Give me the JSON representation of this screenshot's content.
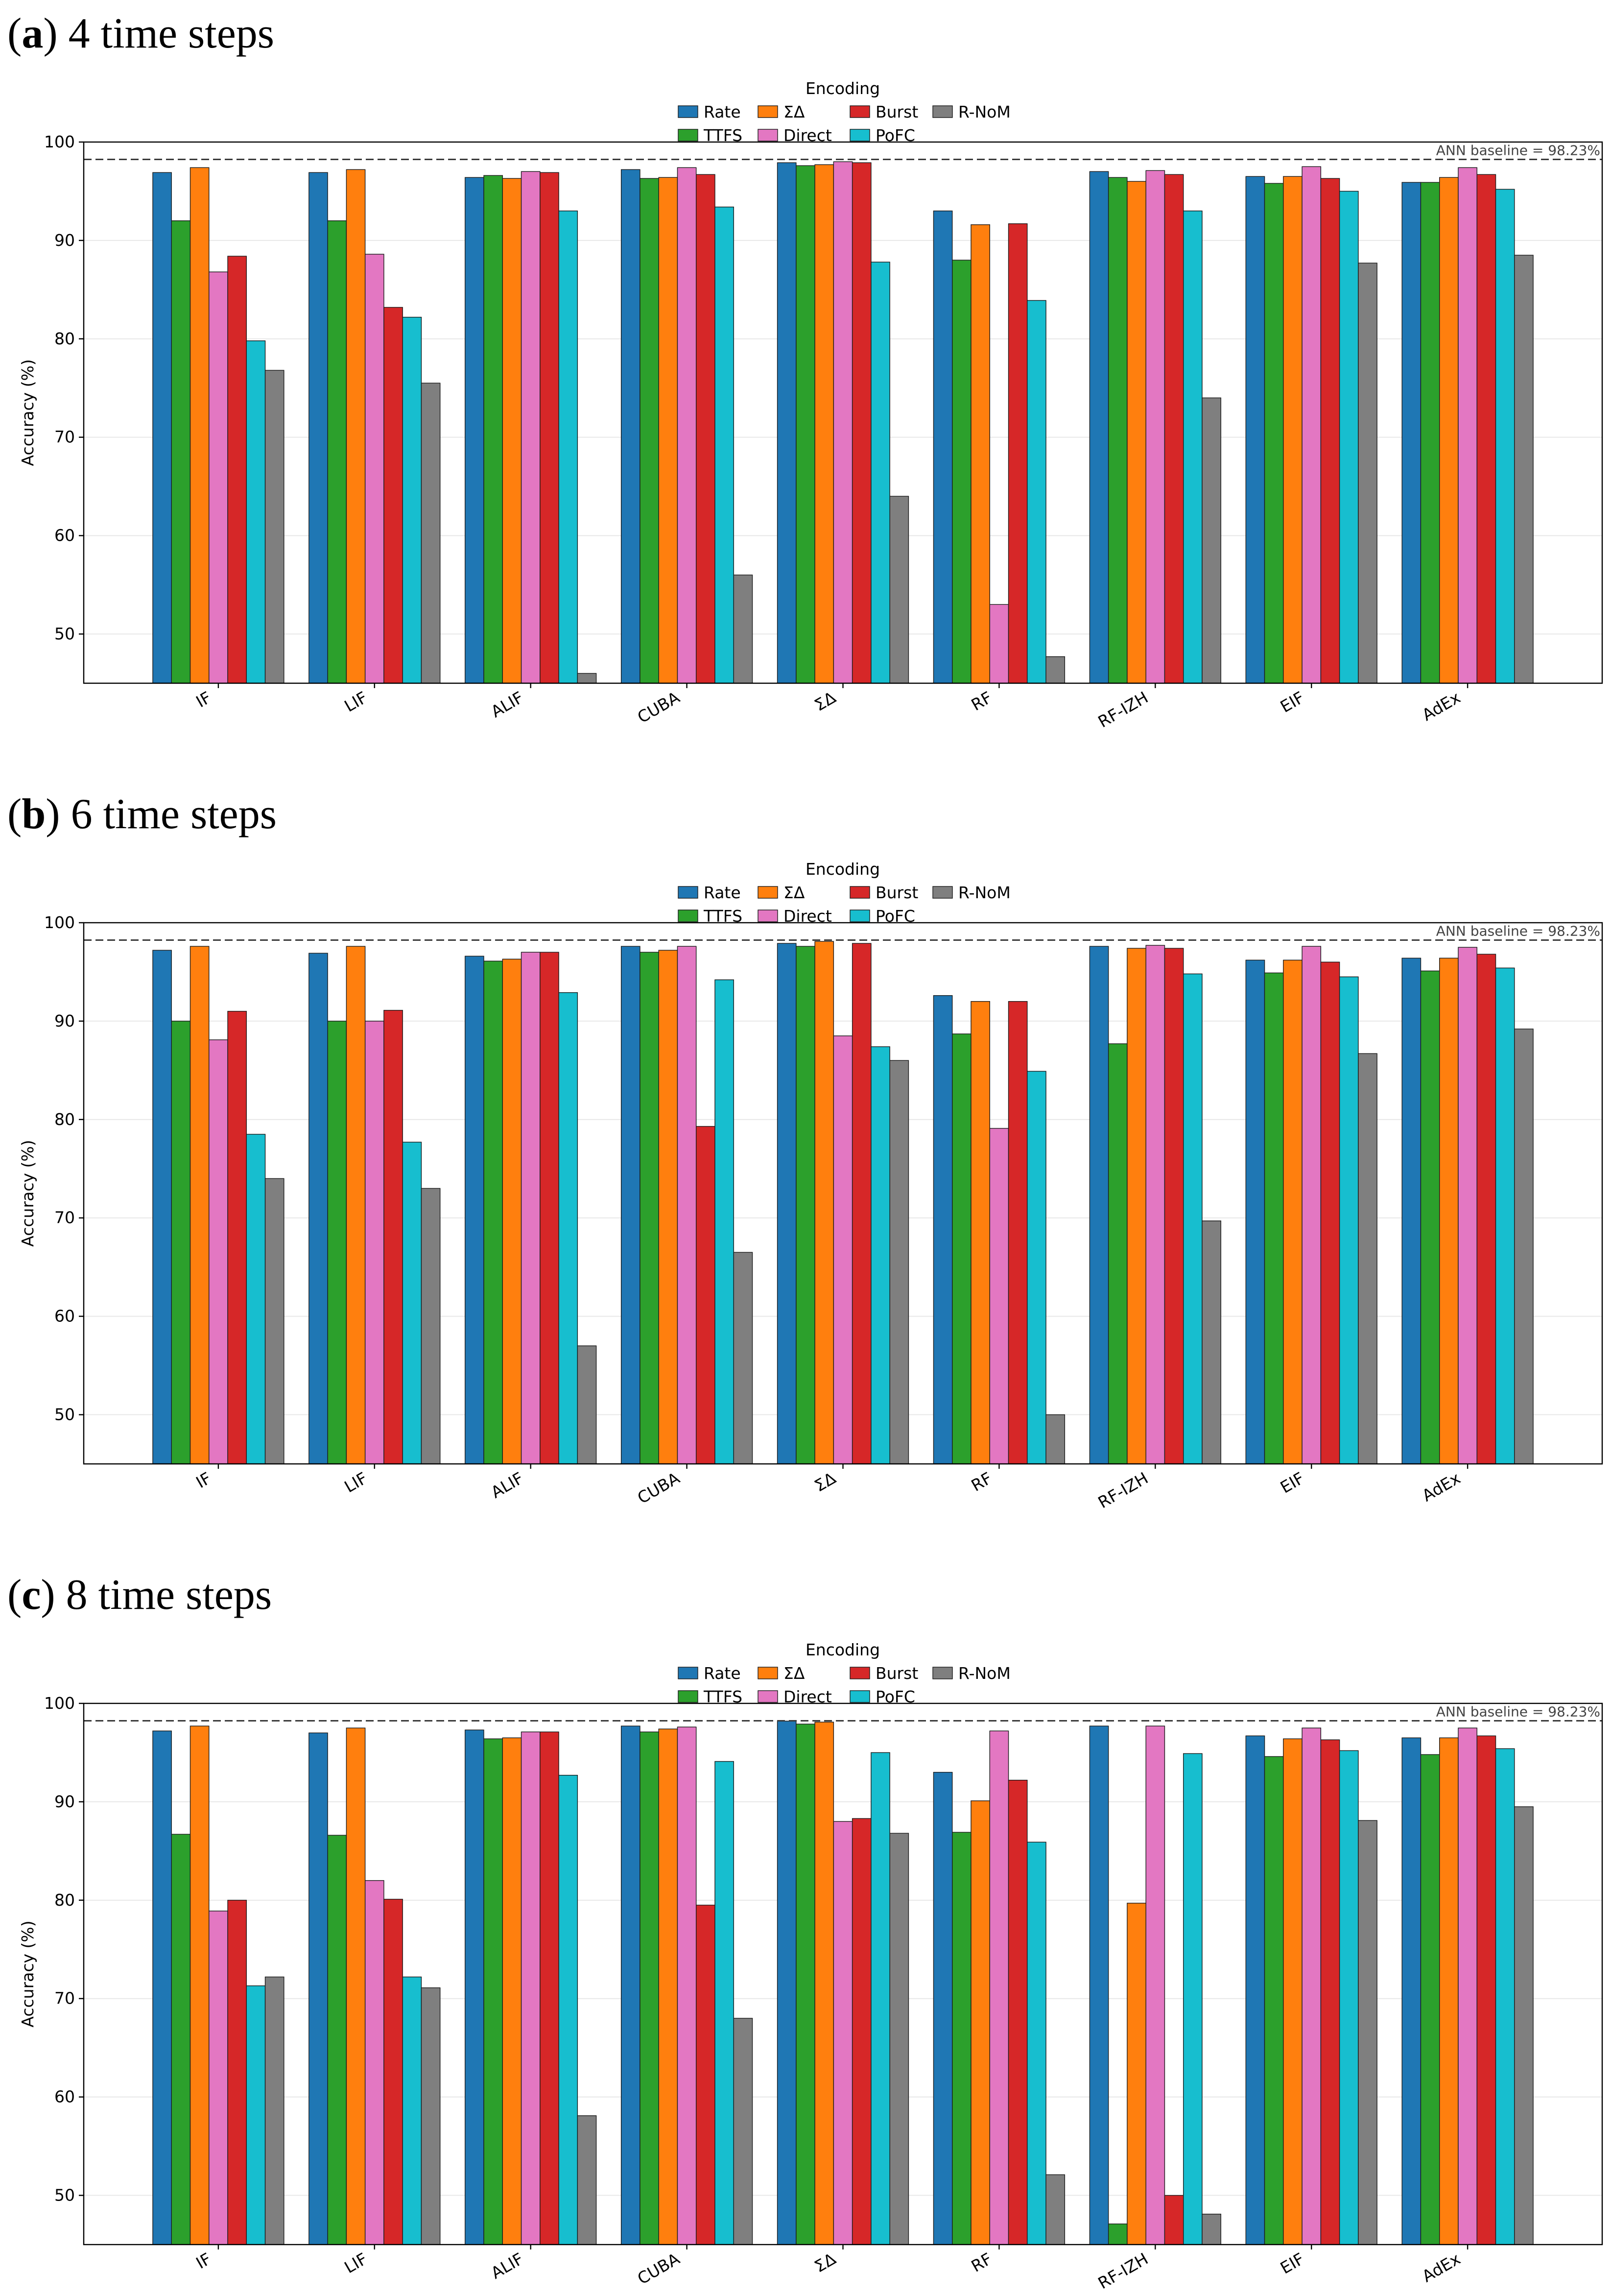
{
  "chart_data": [
    {
      "type": "bar",
      "title_open": "(",
      "title_letter": "a",
      "title_rest": ") 4 time steps",
      "legend_title": "Encoding",
      "xlabel": "",
      "ylabel": "Accuracy (%)",
      "ylim": [
        45,
        100
      ],
      "yticks": [
        50,
        60,
        70,
        80,
        90,
        100
      ],
      "grid": true,
      "baseline": {
        "value": 98.23,
        "label": "ANN baseline = 98.23%"
      },
      "categories": [
        "IF",
        "LIF",
        "ALIF",
        "CUBA",
        "ΣΔ",
        "RF",
        "RF-IZH",
        "EIF",
        "AdEx"
      ],
      "series": [
        {
          "name": "Rate",
          "color": "#1f77b4",
          "values": [
            96.9,
            96.9,
            96.4,
            97.2,
            97.9,
            93.0,
            97.0,
            96.5,
            95.9
          ]
        },
        {
          "name": "TTFS",
          "color": "#2ca02c",
          "values": [
            92.0,
            92.0,
            96.6,
            96.3,
            97.6,
            88.0,
            96.4,
            95.8,
            95.9
          ]
        },
        {
          "name": "ΣΔ",
          "color": "#ff7f0e",
          "values": [
            97.4,
            97.2,
            96.3,
            96.4,
            97.7,
            91.6,
            96.0,
            96.5,
            96.4
          ]
        },
        {
          "name": "Direct",
          "color": "#e377c2",
          "values": [
            86.8,
            88.6,
            97.0,
            97.4,
            98.0,
            53.0,
            97.1,
            97.5,
            97.4
          ]
        },
        {
          "name": "Burst",
          "color": "#d62728",
          "values": [
            88.4,
            83.2,
            96.9,
            96.7,
            97.9,
            91.7,
            96.7,
            96.3,
            96.7
          ]
        },
        {
          "name": "PoFC",
          "color": "#17becf",
          "values": [
            79.8,
            82.2,
            93.0,
            93.4,
            87.8,
            83.9,
            93.0,
            95.0,
            95.2
          ]
        },
        {
          "name": "R-NoM",
          "color": "#7f7f7f",
          "values": [
            76.8,
            75.5,
            46.0,
            56.0,
            64.0,
            47.7,
            74.0,
            87.7,
            88.5
          ]
        }
      ]
    },
    {
      "type": "bar",
      "title_open": "(",
      "title_letter": "b",
      "title_rest": ") 6 time steps",
      "legend_title": "Encoding",
      "xlabel": "",
      "ylabel": "Accuracy (%)",
      "ylim": [
        45,
        100
      ],
      "yticks": [
        50,
        60,
        70,
        80,
        90,
        100
      ],
      "grid": true,
      "baseline": {
        "value": 98.23,
        "label": "ANN baseline = 98.23%"
      },
      "categories": [
        "IF",
        "LIF",
        "ALIF",
        "CUBA",
        "ΣΔ",
        "RF",
        "RF-IZH",
        "EIF",
        "AdEx"
      ],
      "series": [
        {
          "name": "Rate",
          "color": "#1f77b4",
          "values": [
            97.2,
            96.9,
            96.6,
            97.6,
            97.9,
            92.6,
            97.6,
            96.2,
            96.4
          ]
        },
        {
          "name": "TTFS",
          "color": "#2ca02c",
          "values": [
            90.0,
            90.0,
            96.1,
            97.0,
            97.6,
            88.7,
            87.7,
            94.9,
            95.1
          ]
        },
        {
          "name": "ΣΔ",
          "color": "#ff7f0e",
          "values": [
            97.6,
            97.6,
            96.3,
            97.2,
            98.1,
            92.0,
            97.4,
            96.2,
            96.4
          ]
        },
        {
          "name": "Direct",
          "color": "#e377c2",
          "values": [
            88.1,
            90.0,
            97.0,
            97.6,
            88.5,
            79.1,
            97.7,
            97.6,
            97.5
          ]
        },
        {
          "name": "Burst",
          "color": "#d62728",
          "values": [
            91.0,
            91.1,
            97.0,
            79.3,
            97.9,
            92.0,
            97.4,
            96.0,
            96.8
          ]
        },
        {
          "name": "PoFC",
          "color": "#17becf",
          "values": [
            78.5,
            77.7,
            92.9,
            94.2,
            87.4,
            84.9,
            94.8,
            94.5,
            95.4
          ]
        },
        {
          "name": "R-NoM",
          "color": "#7f7f7f",
          "values": [
            74.0,
            73.0,
            57.0,
            66.5,
            86.0,
            50.0,
            69.7,
            86.7,
            89.2
          ]
        }
      ]
    },
    {
      "type": "bar",
      "title_open": "(",
      "title_letter": "c",
      "title_rest": ") 8 time steps",
      "legend_title": "Encoding",
      "xlabel": "",
      "ylabel": "Accuracy (%)",
      "ylim": [
        45,
        100
      ],
      "yticks": [
        50,
        60,
        70,
        80,
        90,
        100
      ],
      "grid": true,
      "baseline": {
        "value": 98.23,
        "label": "ANN baseline = 98.23%"
      },
      "categories": [
        "IF",
        "LIF",
        "ALIF",
        "CUBA",
        "ΣΔ",
        "RF",
        "RF-IZH",
        "EIF",
        "AdEx"
      ],
      "series": [
        {
          "name": "Rate",
          "color": "#1f77b4",
          "values": [
            97.2,
            97.0,
            97.3,
            97.7,
            98.2,
            93.0,
            97.7,
            96.7,
            96.5
          ]
        },
        {
          "name": "TTFS",
          "color": "#2ca02c",
          "values": [
            86.7,
            86.6,
            96.4,
            97.1,
            97.9,
            86.9,
            47.1,
            94.6,
            94.8
          ]
        },
        {
          "name": "ΣΔ",
          "color": "#ff7f0e",
          "values": [
            97.7,
            97.5,
            96.5,
            97.4,
            98.1,
            90.1,
            79.7,
            96.4,
            96.5
          ]
        },
        {
          "name": "Direct",
          "color": "#e377c2",
          "values": [
            78.9,
            82.0,
            97.1,
            97.6,
            88.0,
            97.2,
            97.7,
            97.5,
            97.5
          ]
        },
        {
          "name": "Burst",
          "color": "#d62728",
          "values": [
            80.0,
            80.1,
            97.1,
            79.5,
            88.3,
            92.2,
            50.0,
            96.3,
            96.7
          ]
        },
        {
          "name": "PoFC",
          "color": "#17becf",
          "values": [
            71.3,
            72.2,
            92.7,
            94.1,
            95.0,
            85.9,
            94.9,
            95.2,
            95.4
          ]
        },
        {
          "name": "R-NoM",
          "color": "#7f7f7f",
          "values": [
            72.2,
            71.1,
            58.1,
            68.0,
            86.8,
            52.1,
            48.1,
            88.1,
            89.5
          ]
        }
      ]
    }
  ]
}
